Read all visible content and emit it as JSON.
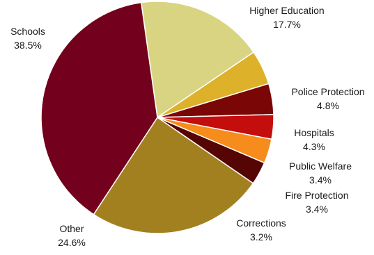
{
  "chart_data": {
    "type": "pie",
    "title": "",
    "legend": "none",
    "slices": [
      {
        "label": "Higher Education",
        "value_label": "17.7%",
        "value": 17.7,
        "color": "#d9d482"
      },
      {
        "label": "Police Protection",
        "value_label": "4.8%",
        "value": 4.8,
        "color": "#ddb12a"
      },
      {
        "label": "Hospitals",
        "value_label": "4.3%",
        "value": 4.3,
        "color": "#7a0606"
      },
      {
        "label": "Public Welfare",
        "value_label": "3.4%",
        "value": 3.4,
        "color": "#c40e0e"
      },
      {
        "label": "Fire Protection",
        "value_label": "3.4%",
        "value": 3.4,
        "color": "#f58c1c"
      },
      {
        "label": "Corrections",
        "value_label": "3.2%",
        "value": 3.2,
        "color": "#560505"
      },
      {
        "label": "Other",
        "value_label": "24.6%",
        "value": 24.6,
        "color": "#a3801f"
      },
      {
        "label": "Schools",
        "value_label": "38.5%",
        "value": 38.5,
        "color": "#73001d"
      }
    ]
  }
}
